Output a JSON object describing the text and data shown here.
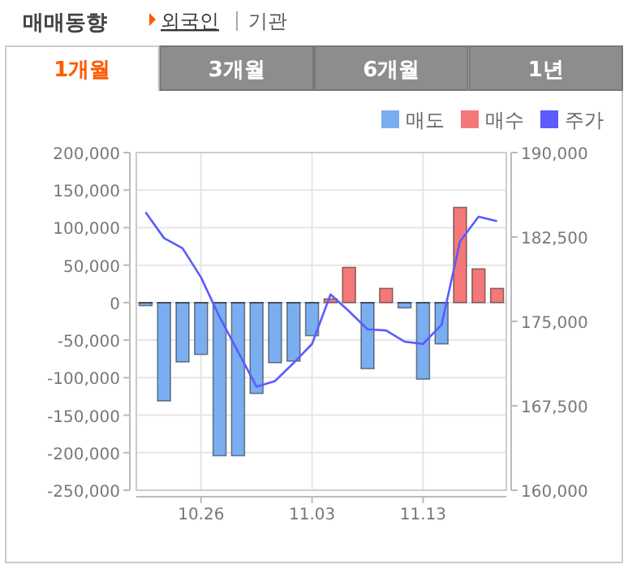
{
  "chart_data": {
    "type": "bar",
    "title": "매매동향",
    "annotations": [
      "외국인",
      "기관",
      "1개월",
      "3개월",
      "6개월",
      "1년"
    ],
    "categories": [
      null,
      null,
      null,
      "10.26",
      null,
      null,
      null,
      null,
      null,
      "11.03",
      null,
      null,
      null,
      null,
      null,
      "11.13",
      null,
      null,
      null,
      null
    ],
    "series": [
      {
        "name": "매도",
        "color": "#7aaef0",
        "values": [
          -4000,
          -131000,
          -79000,
          -69000,
          -204000,
          -204000,
          -121000,
          -80000,
          -78000,
          -44000,
          null,
          null,
          -88000,
          null,
          -7000,
          -102000,
          -55000,
          null,
          null,
          null
        ]
      },
      {
        "name": "매수",
        "color": "#f47878",
        "values": [
          0,
          0,
          0,
          0,
          0,
          0,
          0,
          0,
          0,
          0,
          5000,
          47000,
          0,
          19000,
          0,
          0,
          0,
          127000,
          45000,
          19000
        ]
      },
      {
        "name": "주가",
        "color": "#5b5bff",
        "type": "line",
        "axis": "y2",
        "values": [
          184700,
          182400,
          181500,
          178900,
          175400,
          172300,
          169200,
          169700,
          171300,
          173000,
          177400,
          175900,
          174300,
          174200,
          173200,
          173000,
          174700,
          182100,
          184300,
          183900
        ]
      }
    ],
    "ylim": [
      -250000,
      200000
    ],
    "yticks": [
      {
        "value": 200000,
        "label": "200,000"
      },
      {
        "value": 150000,
        "label": "150,000"
      },
      {
        "value": 100000,
        "label": "100,000"
      },
      {
        "value": 50000,
        "label": "50,000"
      },
      0,
      {
        "value": -50000,
        "label": "-50,000"
      },
      {
        "value": -100000,
        "label": "-100,000"
      },
      {
        "value": -150000,
        "label": "-150,000"
      },
      {
        "value": -200000,
        "label": "-200,000"
      },
      {
        "value": -250000,
        "label": "-250,000"
      }
    ],
    "y2lim": [
      160000,
      190000
    ],
    "y2ticks": [
      {
        "value": 190000,
        "label": "190,000"
      },
      {
        "value": 182500,
        "label": "182,500"
      },
      {
        "value": 175000,
        "label": "175,000"
      },
      {
        "value": 167500,
        "label": "167,500"
      },
      {
        "value": 160000,
        "label": "160,000"
      }
    ],
    "grid": true,
    "legend": "top right"
  }
}
